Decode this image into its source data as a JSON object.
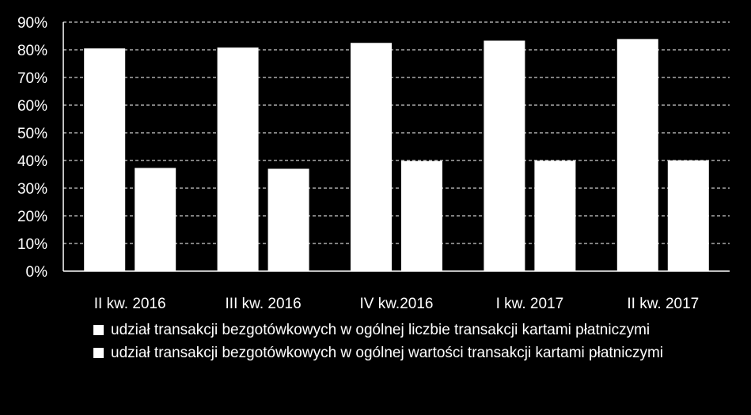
{
  "chart_data": {
    "type": "bar",
    "categories": [
      "II kw. 2016",
      "III kw. 2016",
      "IV kw.2016",
      "I kw. 2017",
      "II kw. 2017"
    ],
    "series": [
      {
        "name": "udział transakcji bezgotówkowych w ogólnej liczbie transakcji kartami płatniczymi",
        "values": [
          80.5,
          80.8,
          82.5,
          83.3,
          83.9
        ]
      },
      {
        "name": "udział transakcji bezgotówkowych w ogólnej wartości transakcji kartami płatniczymi",
        "values": [
          37.3,
          37.0,
          39.8,
          39.9,
          40.0
        ]
      }
    ],
    "yticks": [
      "0%",
      "10%",
      "20%",
      "30%",
      "40%",
      "50%",
      "60%",
      "70%",
      "80%",
      "90%"
    ],
    "ylim": [
      0,
      90
    ],
    "grid": true,
    "legend_position": "bottom",
    "colors": {
      "background": "#000000",
      "bars": "#ffffff",
      "grid": "#ffffff"
    }
  }
}
